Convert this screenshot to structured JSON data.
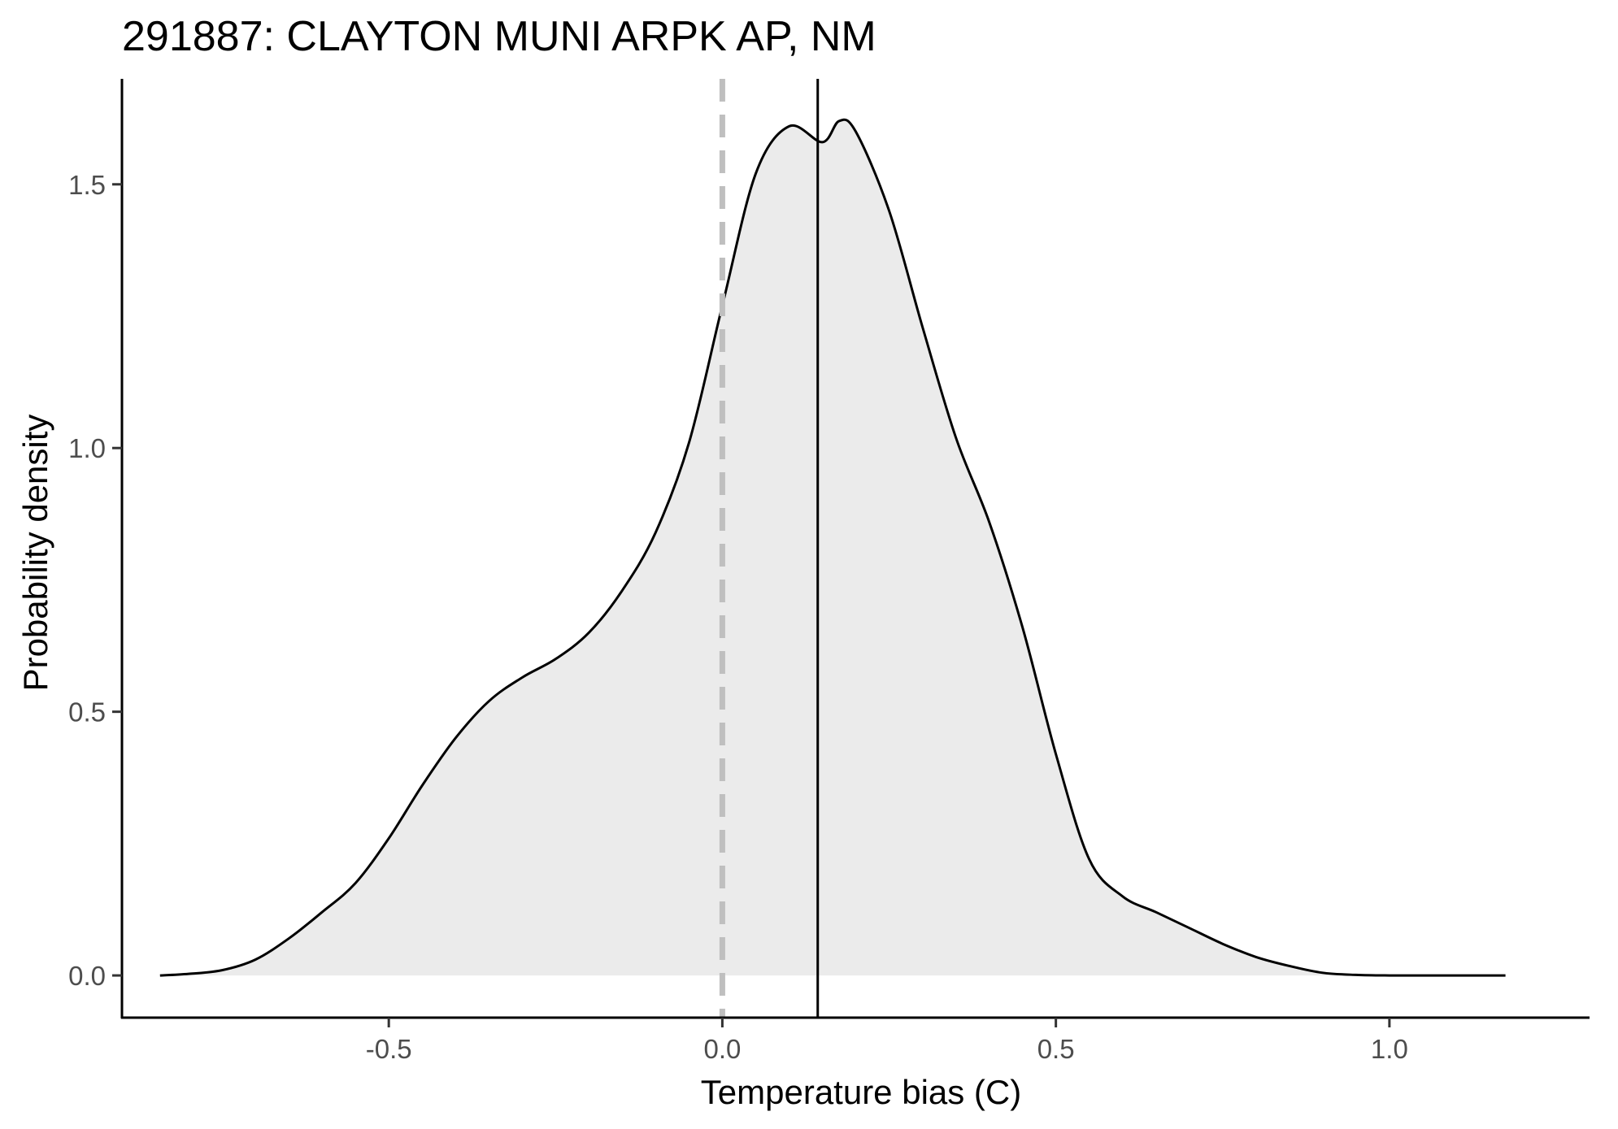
{
  "chart_data": {
    "type": "area",
    "title": "291887: CLAYTON MUNI ARPK AP, NM",
    "xlabel": "Temperature bias (C)",
    "ylabel": "Probability density",
    "xlim": [
      -0.9,
      1.3
    ],
    "ylim": [
      -0.08,
      1.7
    ],
    "x_ticks": [
      -0.5,
      0.0,
      0.5,
      1.0
    ],
    "x_tick_labels": [
      "-0.5",
      "0.0",
      "0.5",
      "1.0"
    ],
    "y_ticks": [
      0.0,
      0.5,
      1.0,
      1.5
    ],
    "y_tick_labels": [
      "0.0",
      "0.5",
      "1.0",
      "1.5"
    ],
    "grid": false,
    "legend": "none",
    "fill_color": "#ebebeb",
    "line_color": "#000000",
    "reference_lines": [
      {
        "x": 0.0,
        "style": "dashed",
        "color": "#bfbfbf"
      },
      {
        "x": 0.143,
        "style": "solid",
        "color": "#000000"
      }
    ],
    "series": [
      {
        "x": [
          -0.843,
          -0.8,
          -0.75,
          -0.7,
          -0.65,
          -0.6,
          -0.55,
          -0.5,
          -0.45,
          -0.4,
          -0.35,
          -0.3,
          -0.25,
          -0.2,
          -0.15,
          -0.1,
          -0.05,
          0.0,
          0.05,
          0.1,
          0.15,
          0.175,
          0.2,
          0.25,
          0.3,
          0.35,
          0.4,
          0.45,
          0.5,
          0.55,
          0.6,
          0.65,
          0.7,
          0.75,
          0.8,
          0.85,
          0.9,
          0.95,
          1.0,
          1.05,
          1.1,
          1.15,
          1.174
        ],
        "y": [
          0.0,
          0.003,
          0.01,
          0.03,
          0.07,
          0.12,
          0.175,
          0.26,
          0.36,
          0.45,
          0.52,
          0.565,
          0.6,
          0.65,
          0.73,
          0.84,
          1.01,
          1.27,
          1.52,
          1.61,
          1.58,
          1.62,
          1.6,
          1.45,
          1.23,
          1.02,
          0.86,
          0.66,
          0.42,
          0.22,
          0.15,
          0.12,
          0.09,
          0.06,
          0.035,
          0.018,
          0.005,
          0.001,
          0.0,
          0.0,
          0.0,
          0.0,
          0.0
        ]
      }
    ]
  }
}
